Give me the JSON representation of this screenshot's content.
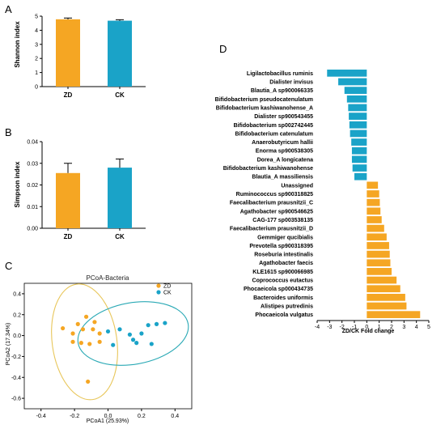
{
  "colors": {
    "zd": "#F5A623",
    "ck": "#1AA3C8",
    "ellipse_zd": "#E8C65A",
    "ellipse_ck": "#2AA9B5"
  },
  "panels": {
    "a": "A",
    "b": "B",
    "c": "C",
    "d": "D"
  },
  "chart_data": [
    {
      "id": "A",
      "type": "bar",
      "categories": [
        "ZD",
        "CK"
      ],
      "values": [
        4.78,
        4.68
      ],
      "errors": [
        0.09,
        0.07
      ],
      "ylabel": "Shannon index",
      "ylim": [
        0,
        5
      ],
      "yticks": [
        "0",
        "1",
        "2",
        "3",
        "4",
        "5"
      ]
    },
    {
      "id": "B",
      "type": "bar",
      "categories": [
        "ZD",
        "CK"
      ],
      "values": [
        0.0255,
        0.028
      ],
      "errors": [
        0.0045,
        0.004
      ],
      "ylabel": "Simpson index",
      "ylim": [
        0,
        0.04
      ],
      "yticks": [
        "0.00",
        "0.01",
        "0.02",
        "0.03",
        "0.04"
      ]
    },
    {
      "id": "C",
      "type": "scatter",
      "title": "PCoA-Bacteria",
      "xlabel": "PCoA1 (25.93%)",
      "ylabel": "PCoA2 (17.34%)",
      "xlim": [
        -0.5,
        0.5
      ],
      "ylim": [
        -0.7,
        0.5
      ],
      "xticks": [
        "-0.4",
        "-0.2",
        "0.0",
        "0.2",
        "0.4"
      ],
      "yticks": [
        "-0.6",
        "-0.4",
        "-0.2",
        "0.0",
        "0.2",
        "0.4"
      ],
      "legend": "top-right",
      "series": [
        {
          "name": "ZD",
          "points": [
            [
              -0.27,
              0.07
            ],
            [
              -0.21,
              0.02
            ],
            [
              -0.18,
              0.11
            ],
            [
              -0.15,
              0.06
            ],
            [
              -0.13,
              0.18
            ],
            [
              -0.09,
              0.06
            ],
            [
              -0.21,
              -0.06
            ],
            [
              -0.16,
              -0.07
            ],
            [
              -0.11,
              -0.08
            ],
            [
              -0.05,
              -0.06
            ],
            [
              -0.08,
              0.13
            ],
            [
              -0.05,
              0.02
            ],
            [
              -0.12,
              -0.44
            ]
          ]
        },
        {
          "name": "CK",
          "points": [
            [
              0.0,
              0.04
            ],
            [
              0.03,
              -0.09
            ],
            [
              0.07,
              0.06
            ],
            [
              0.13,
              0.01
            ],
            [
              0.15,
              -0.04
            ],
            [
              0.17,
              -0.07
            ],
            [
              0.24,
              0.1
            ],
            [
              0.29,
              0.11
            ],
            [
              0.34,
              0.12
            ],
            [
              0.26,
              -0.08
            ],
            [
              0.2,
              0.02
            ]
          ]
        }
      ]
    },
    {
      "id": "D",
      "type": "bar",
      "orientation": "horizontal",
      "xlabel": "ZD/CK Fold change",
      "xlim": [
        -4,
        5
      ],
      "xticks": [
        "-4",
        "-3",
        "-2",
        "-1",
        "0",
        "1",
        "2",
        "3",
        "4",
        "5"
      ],
      "categories": [
        "Ligilactobacillus ruminis",
        "Dialister invisus",
        "Blautia_A sp900066335",
        "Bifidobacterium pseudocatenulatum",
        "Bifidobacterium kashiwanohense_A",
        "Dialister sp900543455",
        "Bifidobacterium sp002742445",
        "Bifidobacterium catenulatum",
        "Anaerobutyricum hallii",
        "Enorma sp900538305",
        "Dorea_A  longicatena",
        "Bifidobacterium  kashiwanohense",
        "Blautia_A  massiliensis",
        "Unassigned",
        "Ruminococcus sp900318825",
        "Faecalibacterium prausnitzii_C",
        "Agathobacter sp900546625",
        "CAG-177 sp003538135",
        "Faecalibacterium prausnitzii_D",
        "Gemmiger qucibialis",
        "Prevotella sp900318395",
        "Roseburia intestinalis",
        "Agathobacter faecis",
        "KLE1615 sp900066985",
        "Coprococcus eutactus",
        "Phocaeicola sp000434735",
        "Bacteroides uniformis",
        "Alistipes putredinis",
        "Phocaeicola vulgatus"
      ],
      "values": [
        -3.2,
        -2.3,
        -1.8,
        -1.6,
        -1.5,
        -1.45,
        -1.4,
        -1.35,
        -1.25,
        -1.2,
        -1.2,
        -1.15,
        -1.0,
        0.9,
        1.0,
        1.05,
        1.1,
        1.2,
        1.4,
        1.6,
        1.8,
        1.85,
        1.9,
        2.0,
        2.4,
        2.7,
        3.1,
        3.2,
        4.3
      ]
    }
  ]
}
